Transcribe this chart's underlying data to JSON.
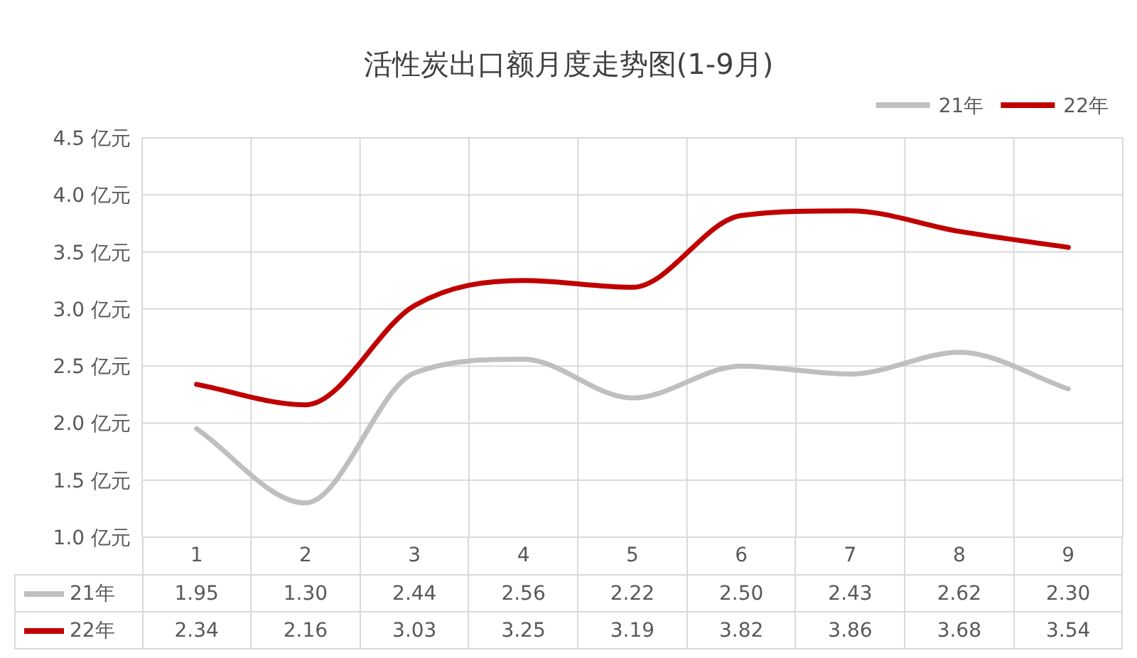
{
  "chart_data": {
    "type": "line",
    "title": "活性炭出口额月度走势图(1-9月)",
    "categories": [
      "1",
      "2",
      "3",
      "4",
      "5",
      "6",
      "7",
      "8",
      "9"
    ],
    "series": [
      {
        "name": "21年",
        "color": "#bfbfbf",
        "values": [
          1.95,
          1.3,
          2.44,
          2.56,
          2.22,
          2.5,
          2.43,
          2.62,
          2.3
        ],
        "value_labels": [
          "1.95",
          "1.30",
          "2.44",
          "2.56",
          "2.22",
          "2.50",
          "2.43",
          "2.62",
          "2.30"
        ]
      },
      {
        "name": "22年",
        "color": "#c00000",
        "values": [
          2.34,
          2.16,
          3.03,
          3.25,
          3.19,
          3.82,
          3.86,
          3.68,
          3.54
        ],
        "value_labels": [
          "2.34",
          "2.16",
          "3.03",
          "3.25",
          "3.19",
          "3.82",
          "3.86",
          "3.68",
          "3.54"
        ]
      }
    ],
    "ylim": [
      1.0,
      4.5
    ],
    "yticks": [
      {
        "value": 1.0,
        "label": "1.0 亿元"
      },
      {
        "value": 1.5,
        "label": "1.5 亿元"
      },
      {
        "value": 2.0,
        "label": "2.0 亿元"
      },
      {
        "value": 2.5,
        "label": "2.5 亿元"
      },
      {
        "value": 3.0,
        "label": "3.0 亿元"
      },
      {
        "value": 3.5,
        "label": "3.5 亿元"
      },
      {
        "value": 4.0,
        "label": "4.0 亿元"
      },
      {
        "value": 4.5,
        "label": "4.5 亿元"
      }
    ],
    "grid": true,
    "legend": "top right"
  }
}
